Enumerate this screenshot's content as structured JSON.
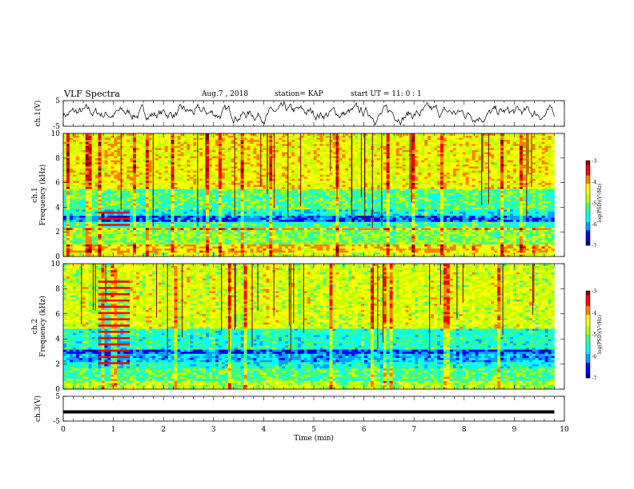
{
  "header": {
    "title": "VLF Spectra",
    "date": "Aug.7 , 2018",
    "station": "station= KAP",
    "start": "start UT = 11: 0 : 1"
  },
  "colors": {
    "spectrogram_scale": [
      "#000080",
      "#0000ff",
      "#00a0ff",
      "#00ffff",
      "#40ff80",
      "#c0ff00",
      "#ffff00",
      "#ff8000",
      "#ff0000",
      "#800000"
    ],
    "trace": "#000000",
    "background": "#ffffff"
  },
  "chart_data": [
    {
      "id": "ch1-waveform",
      "type": "line",
      "ylabel": "ch.1(V)",
      "ylim": [
        -5,
        5
      ],
      "yticks": [
        5,
        -5
      ],
      "xlim": [
        0,
        10
      ],
      "series": [
        {
          "x_range_min": [
            0,
            9.8
          ],
          "description_values": "noise around 0 V, amplitude about ±2.5 V"
        }
      ]
    },
    {
      "id": "ch1-spectrogram",
      "type": "heatmap",
      "ylabel": "ch.1 Frequency (kHz)",
      "ylim": [
        0,
        10
      ],
      "yticks": [
        0,
        2,
        4,
        6,
        8,
        10
      ],
      "xlim": [
        0,
        10
      ],
      "data_end_min": 9.8,
      "colorbar": {
        "label": "log(PSD)(V²/Hz)",
        "ticks": [
          -3,
          -4,
          -5,
          -6,
          -7
        ],
        "range": [
          -7,
          -3
        ]
      },
      "bands_khz": [
        {
          "f0": 0.0,
          "f1": 0.3,
          "level": -4.6
        },
        {
          "f0": 0.3,
          "f1": 1.0,
          "level": -4.2
        },
        {
          "f0": 1.0,
          "f1": 2.2,
          "level": -5.0
        },
        {
          "f0": 2.2,
          "f1": 2.4,
          "level": -4.0
        },
        {
          "f0": 2.4,
          "f1": 2.8,
          "level": -5.3
        },
        {
          "f0": 2.8,
          "f1": 3.4,
          "level": -6.3
        },
        {
          "f0": 3.4,
          "f1": 3.9,
          "level": -5.6
        },
        {
          "f0": 3.9,
          "f1": 5.5,
          "level": -5.2
        },
        {
          "f0": 5.5,
          "f1": 10.0,
          "level": -4.4
        }
      ]
    },
    {
      "id": "ch2-spectrogram",
      "type": "heatmap",
      "ylabel": "ch.2 Frequency (kHz)",
      "ylim": [
        0,
        10
      ],
      "yticks": [
        0,
        2,
        4,
        6,
        8,
        10
      ],
      "xlim": [
        0,
        10
      ],
      "data_end_min": 9.8,
      "colorbar": {
        "label": "log(PSD)(V²/Hz)",
        "ticks": [
          -3,
          -4,
          -5,
          -6,
          -7
        ],
        "range": [
          -7,
          -3
        ]
      },
      "bands_khz": [
        {
          "f0": 0.0,
          "f1": 0.6,
          "level": -4.8
        },
        {
          "f0": 0.6,
          "f1": 1.6,
          "level": -5.2
        },
        {
          "f0": 1.6,
          "f1": 2.2,
          "level": -5.6
        },
        {
          "f0": 2.2,
          "f1": 2.8,
          "level": -6.0
        },
        {
          "f0": 2.8,
          "f1": 3.2,
          "level": -6.4
        },
        {
          "f0": 3.2,
          "f1": 4.8,
          "level": -5.5
        },
        {
          "f0": 4.8,
          "f1": 10.0,
          "level": -4.6
        }
      ]
    },
    {
      "id": "ch3-waveform",
      "type": "line",
      "ylabel": "ch.3(V)",
      "ylim": [
        -5,
        5
      ],
      "yticks": [
        5,
        -5
      ],
      "xlim": [
        0,
        10
      ],
      "xlabel": "Time (min)",
      "xticks": [
        0,
        1,
        2,
        3,
        4,
        5,
        6,
        7,
        8,
        9,
        10
      ],
      "series": [
        {
          "value_v": -1.3,
          "x_range_min": [
            0,
            9.8
          ]
        }
      ]
    }
  ]
}
